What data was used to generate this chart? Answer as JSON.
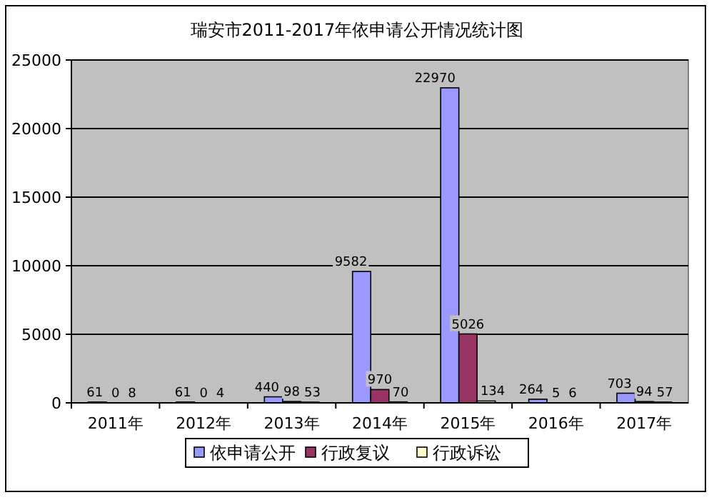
{
  "chart_data": {
    "type": "bar",
    "title": "瑞安市2011-2017年依申请公开情况统计图",
    "categories": [
      "2011年",
      "2012年",
      "2013年",
      "2014年",
      "2015年",
      "2016年",
      "2017年"
    ],
    "series": [
      {
        "name": "依申请公开",
        "color": "#9999ff",
        "values": [
          61,
          61,
          440,
          9582,
          22970,
          264,
          703
        ]
      },
      {
        "name": "行政复议",
        "color": "#993366",
        "values": [
          0,
          0,
          98,
          970,
          5026,
          5,
          94
        ]
      },
      {
        "name": "行政诉讼",
        "color": "#ffffcc",
        "values": [
          8,
          4,
          53,
          70,
          134,
          6,
          57
        ]
      }
    ],
    "ylim": [
      0,
      25000
    ],
    "yticks": [
      0,
      5000,
      10000,
      15000,
      20000,
      25000
    ],
    "grid": "y",
    "legend": "bottom",
    "data_labels": true
  }
}
